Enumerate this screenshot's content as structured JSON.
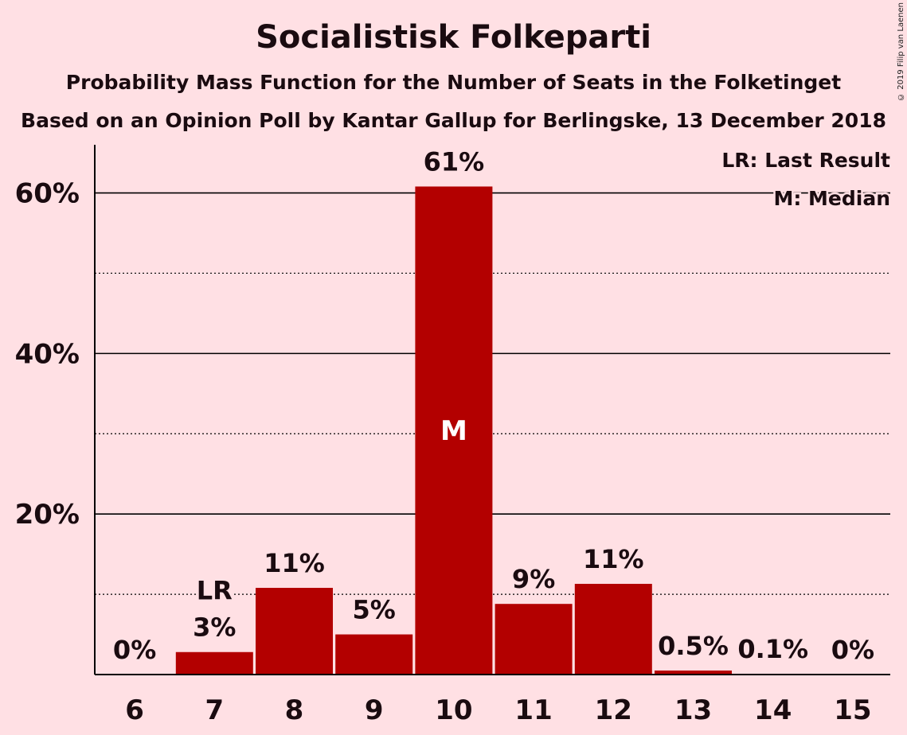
{
  "copyright": "© 2019 Filip van Laenen",
  "chart_data": {
    "type": "bar",
    "title": "Socialistisk Folkeparti",
    "subtitle": "Probability Mass Function for the Number of Seats in the Folketinget",
    "subtitle2": "Based on an Opinion Poll by Kantar Gallup for Berlingske, 13 December 2018",
    "categories": [
      "6",
      "7",
      "8",
      "9",
      "10",
      "11",
      "12",
      "13",
      "14",
      "15"
    ],
    "values": [
      0,
      2.8,
      10.8,
      5.0,
      60.8,
      8.8,
      11.3,
      0.5,
      0.1,
      0
    ],
    "data_labels": [
      "0%",
      "3%",
      "11%",
      "5%",
      "61%",
      "9%",
      "11%",
      "0.5%",
      "0.1%",
      "0%"
    ],
    "ylim": [
      0,
      66
    ],
    "yticks": [
      20,
      40,
      60
    ],
    "ytick_labels": [
      "20%",
      "40%",
      "60%"
    ],
    "minor_gridlines": [
      10,
      30,
      50
    ],
    "last_result_category": "7",
    "median_category": "10",
    "last_result_marker": "LR",
    "median_marker": "M",
    "legend": [
      "LR: Last Result",
      "M: Median"
    ],
    "legend_position": "top-right",
    "bar_color": "#B30000",
    "background_color": "#FFE0E4"
  }
}
